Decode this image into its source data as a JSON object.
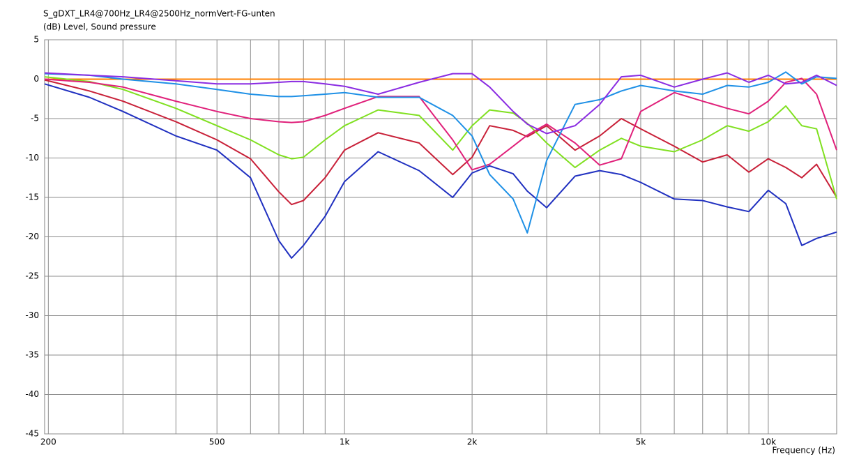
{
  "chart_data": {
    "type": "line",
    "title": "S_gDXT_LR4@700Hz_LR4@2500Hz_normVert-FG-unten",
    "y_label": "(dB)  Level, Sound pressure",
    "x_label": "Frequency  (Hz)",
    "x_scale": "log",
    "grid": true,
    "xlim": [
      196,
      14500
    ],
    "ylim": [
      -45,
      5
    ],
    "xticks": [
      200,
      500,
      {
        "value": 1000,
        "label": "1k"
      },
      {
        "value": 2000,
        "label": "2k"
      },
      {
        "value": 5000,
        "label": "5k"
      },
      {
        "value": 10000,
        "label": "10k"
      }
    ],
    "xminor": [
      300,
      400,
      600,
      700,
      800,
      900,
      3000,
      4000,
      6000,
      7000,
      8000,
      9000
    ],
    "yticks": [
      5,
      0,
      -5,
      -10,
      -15,
      -20,
      -25,
      -30,
      -35,
      -40,
      -45
    ],
    "x": [
      196,
      250,
      300,
      400,
      500,
      600,
      700,
      750,
      800,
      900,
      1000,
      1200,
      1500,
      1800,
      2000,
      2200,
      2500,
      2700,
      3000,
      3500,
      4000,
      4500,
      5000,
      6000,
      7000,
      8000,
      9000,
      10000,
      11000,
      12000,
      13000,
      14500
    ],
    "series": [
      {
        "color": "#ff8000",
        "values": [
          0,
          0,
          0,
          0,
          0,
          0,
          0,
          0,
          0,
          0,
          0,
          0,
          0,
          0,
          0,
          0,
          0,
          0,
          0,
          0,
          0,
          0,
          0,
          0,
          0,
          0,
          0,
          0,
          0,
          0,
          0,
          0
        ]
      },
      {
        "color": "#2030c0",
        "values": [
          -0.6,
          -2.3,
          -4.1,
          -7.2,
          -9.0,
          -12.5,
          -20.5,
          -22.7,
          -21.1,
          -17.4,
          -13.0,
          -9.2,
          -11.6,
          -15.0,
          -11.9,
          -11.0,
          -12.0,
          -14.2,
          -16.3,
          -12.3,
          -11.6,
          -12.1,
          -13.1,
          -15.2,
          -15.4,
          -16.2,
          -16.8,
          -14.1,
          -15.8,
          -21.1,
          -20.2,
          -19.4
        ]
      },
      {
        "color": "#c82038",
        "values": [
          -0.1,
          -1.5,
          -2.8,
          -5.4,
          -7.7,
          -10.1,
          -14.3,
          -15.9,
          -15.4,
          -12.5,
          -9.0,
          -6.8,
          -8.1,
          -12.1,
          -9.9,
          -5.9,
          -6.5,
          -7.3,
          -5.9,
          -9.0,
          -7.2,
          -5.0,
          -6.3,
          -8.5,
          -10.5,
          -9.6,
          -11.8,
          -10.1,
          -11.2,
          -12.5,
          -10.8,
          -15.0
        ]
      },
      {
        "color": "#80e020",
        "values": [
          0.3,
          -0.3,
          -1.3,
          -3.7,
          -5.9,
          -7.7,
          -9.6,
          -10.1,
          -9.9,
          -7.7,
          -5.9,
          -3.9,
          -4.6,
          -9.0,
          -5.9,
          -3.9,
          -4.3,
          -5.6,
          -8.1,
          -11.2,
          -9.0,
          -7.5,
          -8.5,
          -9.2,
          -7.7,
          -5.9,
          -6.6,
          -5.4,
          -3.4,
          -5.9,
          -6.3,
          -15.2
        ]
      },
      {
        "color": "#e0207a",
        "values": [
          0,
          -0.4,
          -1.0,
          -2.8,
          -4.1,
          -5.0,
          -5.4,
          -5.5,
          -5.4,
          -4.6,
          -3.7,
          -2.2,
          -2.2,
          -7.7,
          -11.5,
          -10.8,
          -8.5,
          -7.1,
          -5.7,
          -8.1,
          -10.9,
          -10.1,
          -4.1,
          -1.7,
          -2.8,
          -3.7,
          -4.4,
          -2.8,
          -0.4,
          0.1,
          -1.9,
          -9.0
        ]
      },
      {
        "color": "#1e90e6",
        "values": [
          0.7,
          0.5,
          0,
          -0.6,
          -1.3,
          -1.9,
          -2.2,
          -2.2,
          -2.1,
          -1.9,
          -1.7,
          -2.3,
          -2.3,
          -4.6,
          -7.2,
          -12.1,
          -15.2,
          -19.5,
          -10.3,
          -3.2,
          -2.6,
          -1.5,
          -0.8,
          -1.5,
          -1.9,
          -0.8,
          -1.0,
          -0.4,
          0.9,
          -0.6,
          0.3,
          0.1
        ]
      },
      {
        "color": "#8a2be2",
        "values": [
          0.8,
          0.5,
          0.3,
          -0.2,
          -0.6,
          -0.6,
          -0.4,
          -0.3,
          -0.3,
          -0.6,
          -0.9,
          -1.9,
          -0.4,
          0.7,
          0.7,
          -1.0,
          -4.1,
          -5.7,
          -6.9,
          -5.9,
          -3.2,
          0.3,
          0.5,
          -1.0,
          0,
          0.8,
          -0.4,
          0.5,
          -0.6,
          -0.4,
          0.5,
          -0.8
        ]
      }
    ]
  }
}
